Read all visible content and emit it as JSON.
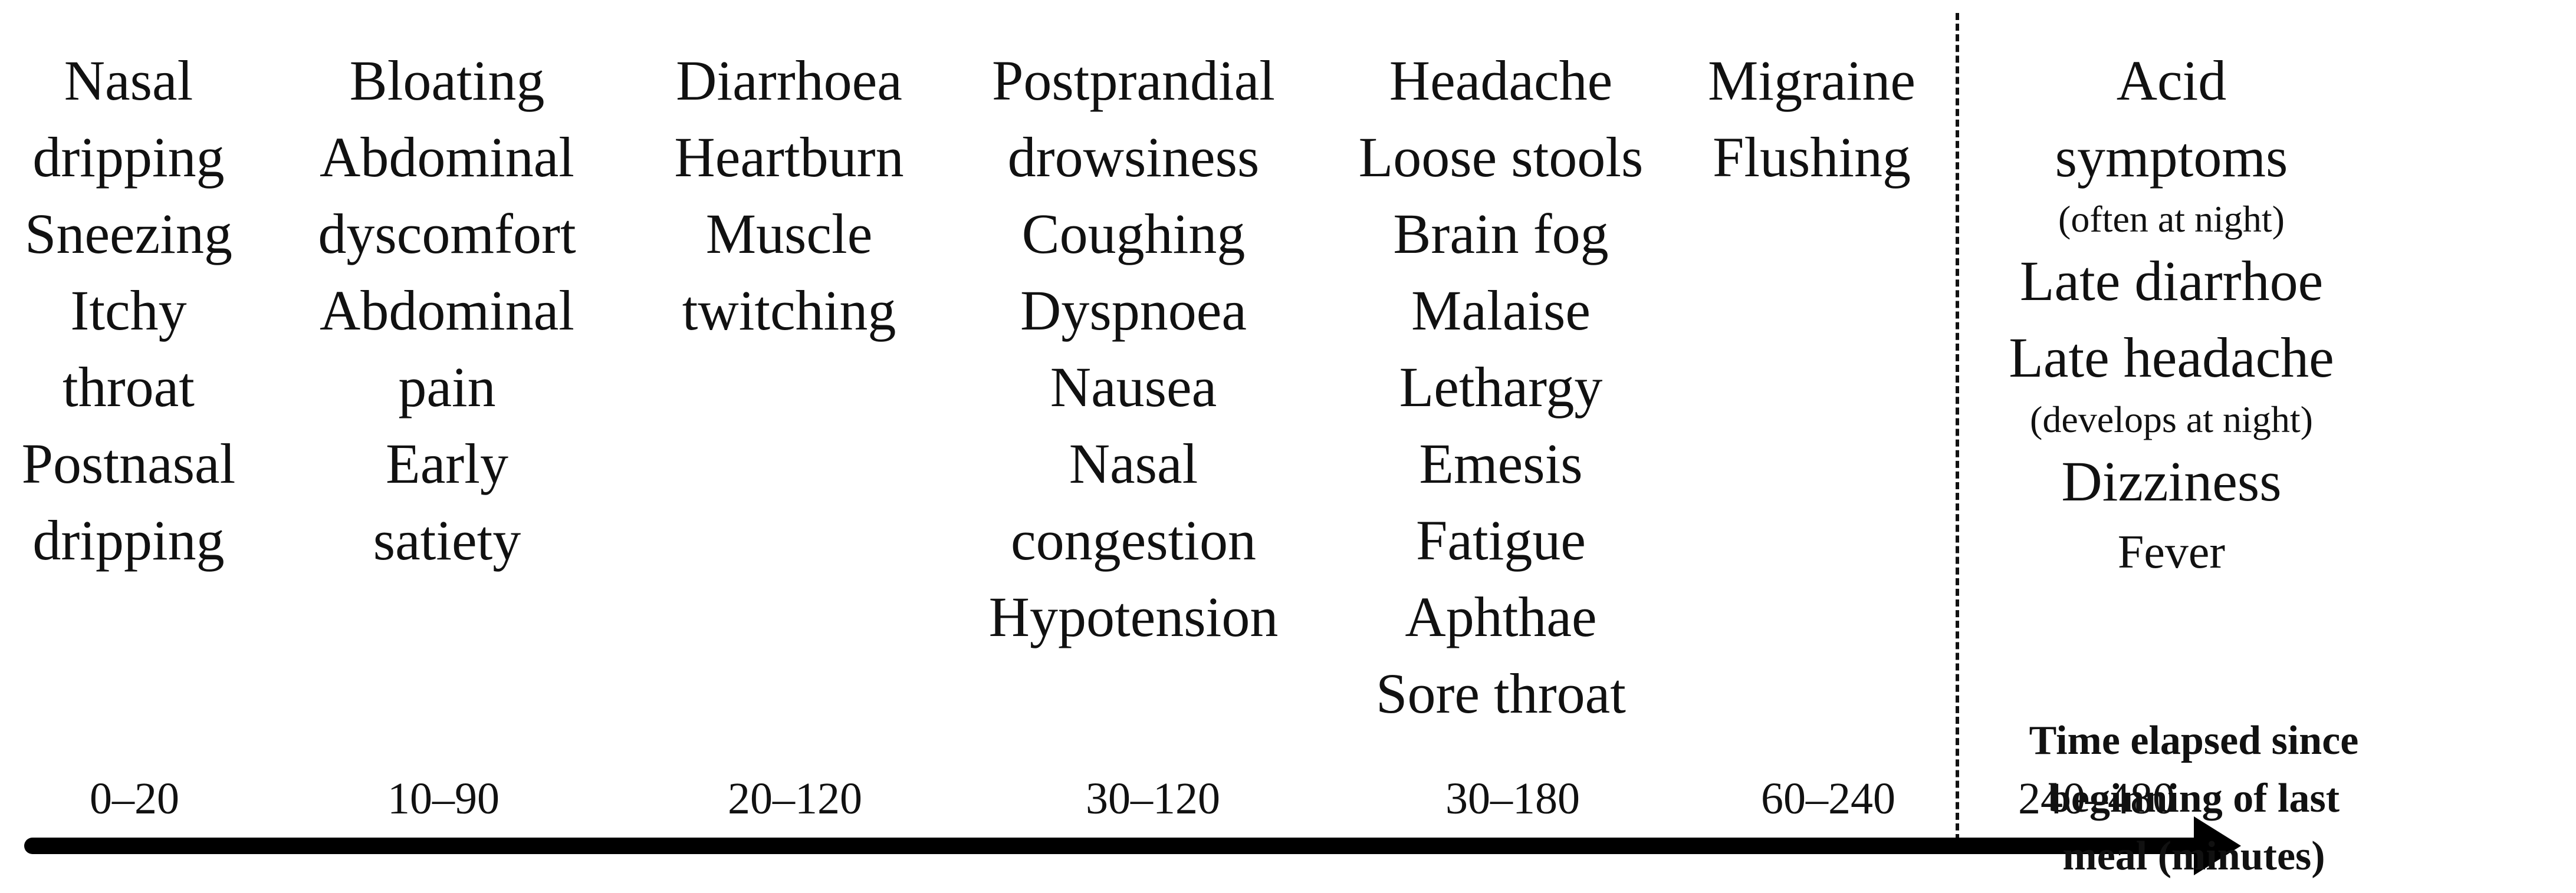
{
  "axis_label": "Time elapsed since beginning of last meal (minutes)",
  "columns": [
    {
      "range": "0–20",
      "items": [
        {
          "text": "Nasal"
        },
        {
          "text": "dripping"
        },
        {
          "text": "Sneezing"
        },
        {
          "text": "Itchy"
        },
        {
          "text": "throat"
        },
        {
          "text": "Postnasal"
        },
        {
          "text": "dripping"
        }
      ]
    },
    {
      "range": "10–90",
      "items": [
        {
          "text": "Bloating"
        },
        {
          "text": "Abdominal"
        },
        {
          "text": "dyscomfort"
        },
        {
          "text": "Abdominal"
        },
        {
          "text": "pain"
        },
        {
          "text": "Early"
        },
        {
          "text": "satiety"
        }
      ]
    },
    {
      "range": "20–120",
      "items": [
        {
          "text": "Diarrhoea"
        },
        {
          "text": "Heartburn"
        },
        {
          "text": "Muscle"
        },
        {
          "text": "twitching"
        }
      ]
    },
    {
      "range": "30–120",
      "items": [
        {
          "text": "Postprandial"
        },
        {
          "text": "drowsiness"
        },
        {
          "text": "Coughing"
        },
        {
          "text": "Dyspnoea"
        },
        {
          "text": "Nausea"
        },
        {
          "text": "Nasal"
        },
        {
          "text": "congestion"
        },
        {
          "text": "Hypotension"
        }
      ]
    },
    {
      "range": "30–180",
      "items": [
        {
          "text": "Headache"
        },
        {
          "text": "Loose stools"
        },
        {
          "text": "Brain fog"
        },
        {
          "text": "Malaise"
        },
        {
          "text": "Lethargy"
        },
        {
          "text": "Emesis"
        },
        {
          "text": "Fatigue"
        },
        {
          "text": "Aphthae"
        },
        {
          "text": "Sore throat"
        }
      ]
    },
    {
      "range": "60–240",
      "items": [
        {
          "text": "Migraine"
        },
        {
          "text": "Flushing"
        }
      ]
    },
    {
      "range": "240–480",
      "items": [
        {
          "text": "Acid"
        },
        {
          "text": "symptoms"
        },
        {
          "text": "(often at night)",
          "note": true
        },
        {
          "text": "Late diarrhoe"
        },
        {
          "text": "Late headache"
        },
        {
          "text": "(develops at night)",
          "note": true
        },
        {
          "text": "Dizziness"
        },
        {
          "text": "Fever",
          "small": true
        }
      ]
    }
  ]
}
